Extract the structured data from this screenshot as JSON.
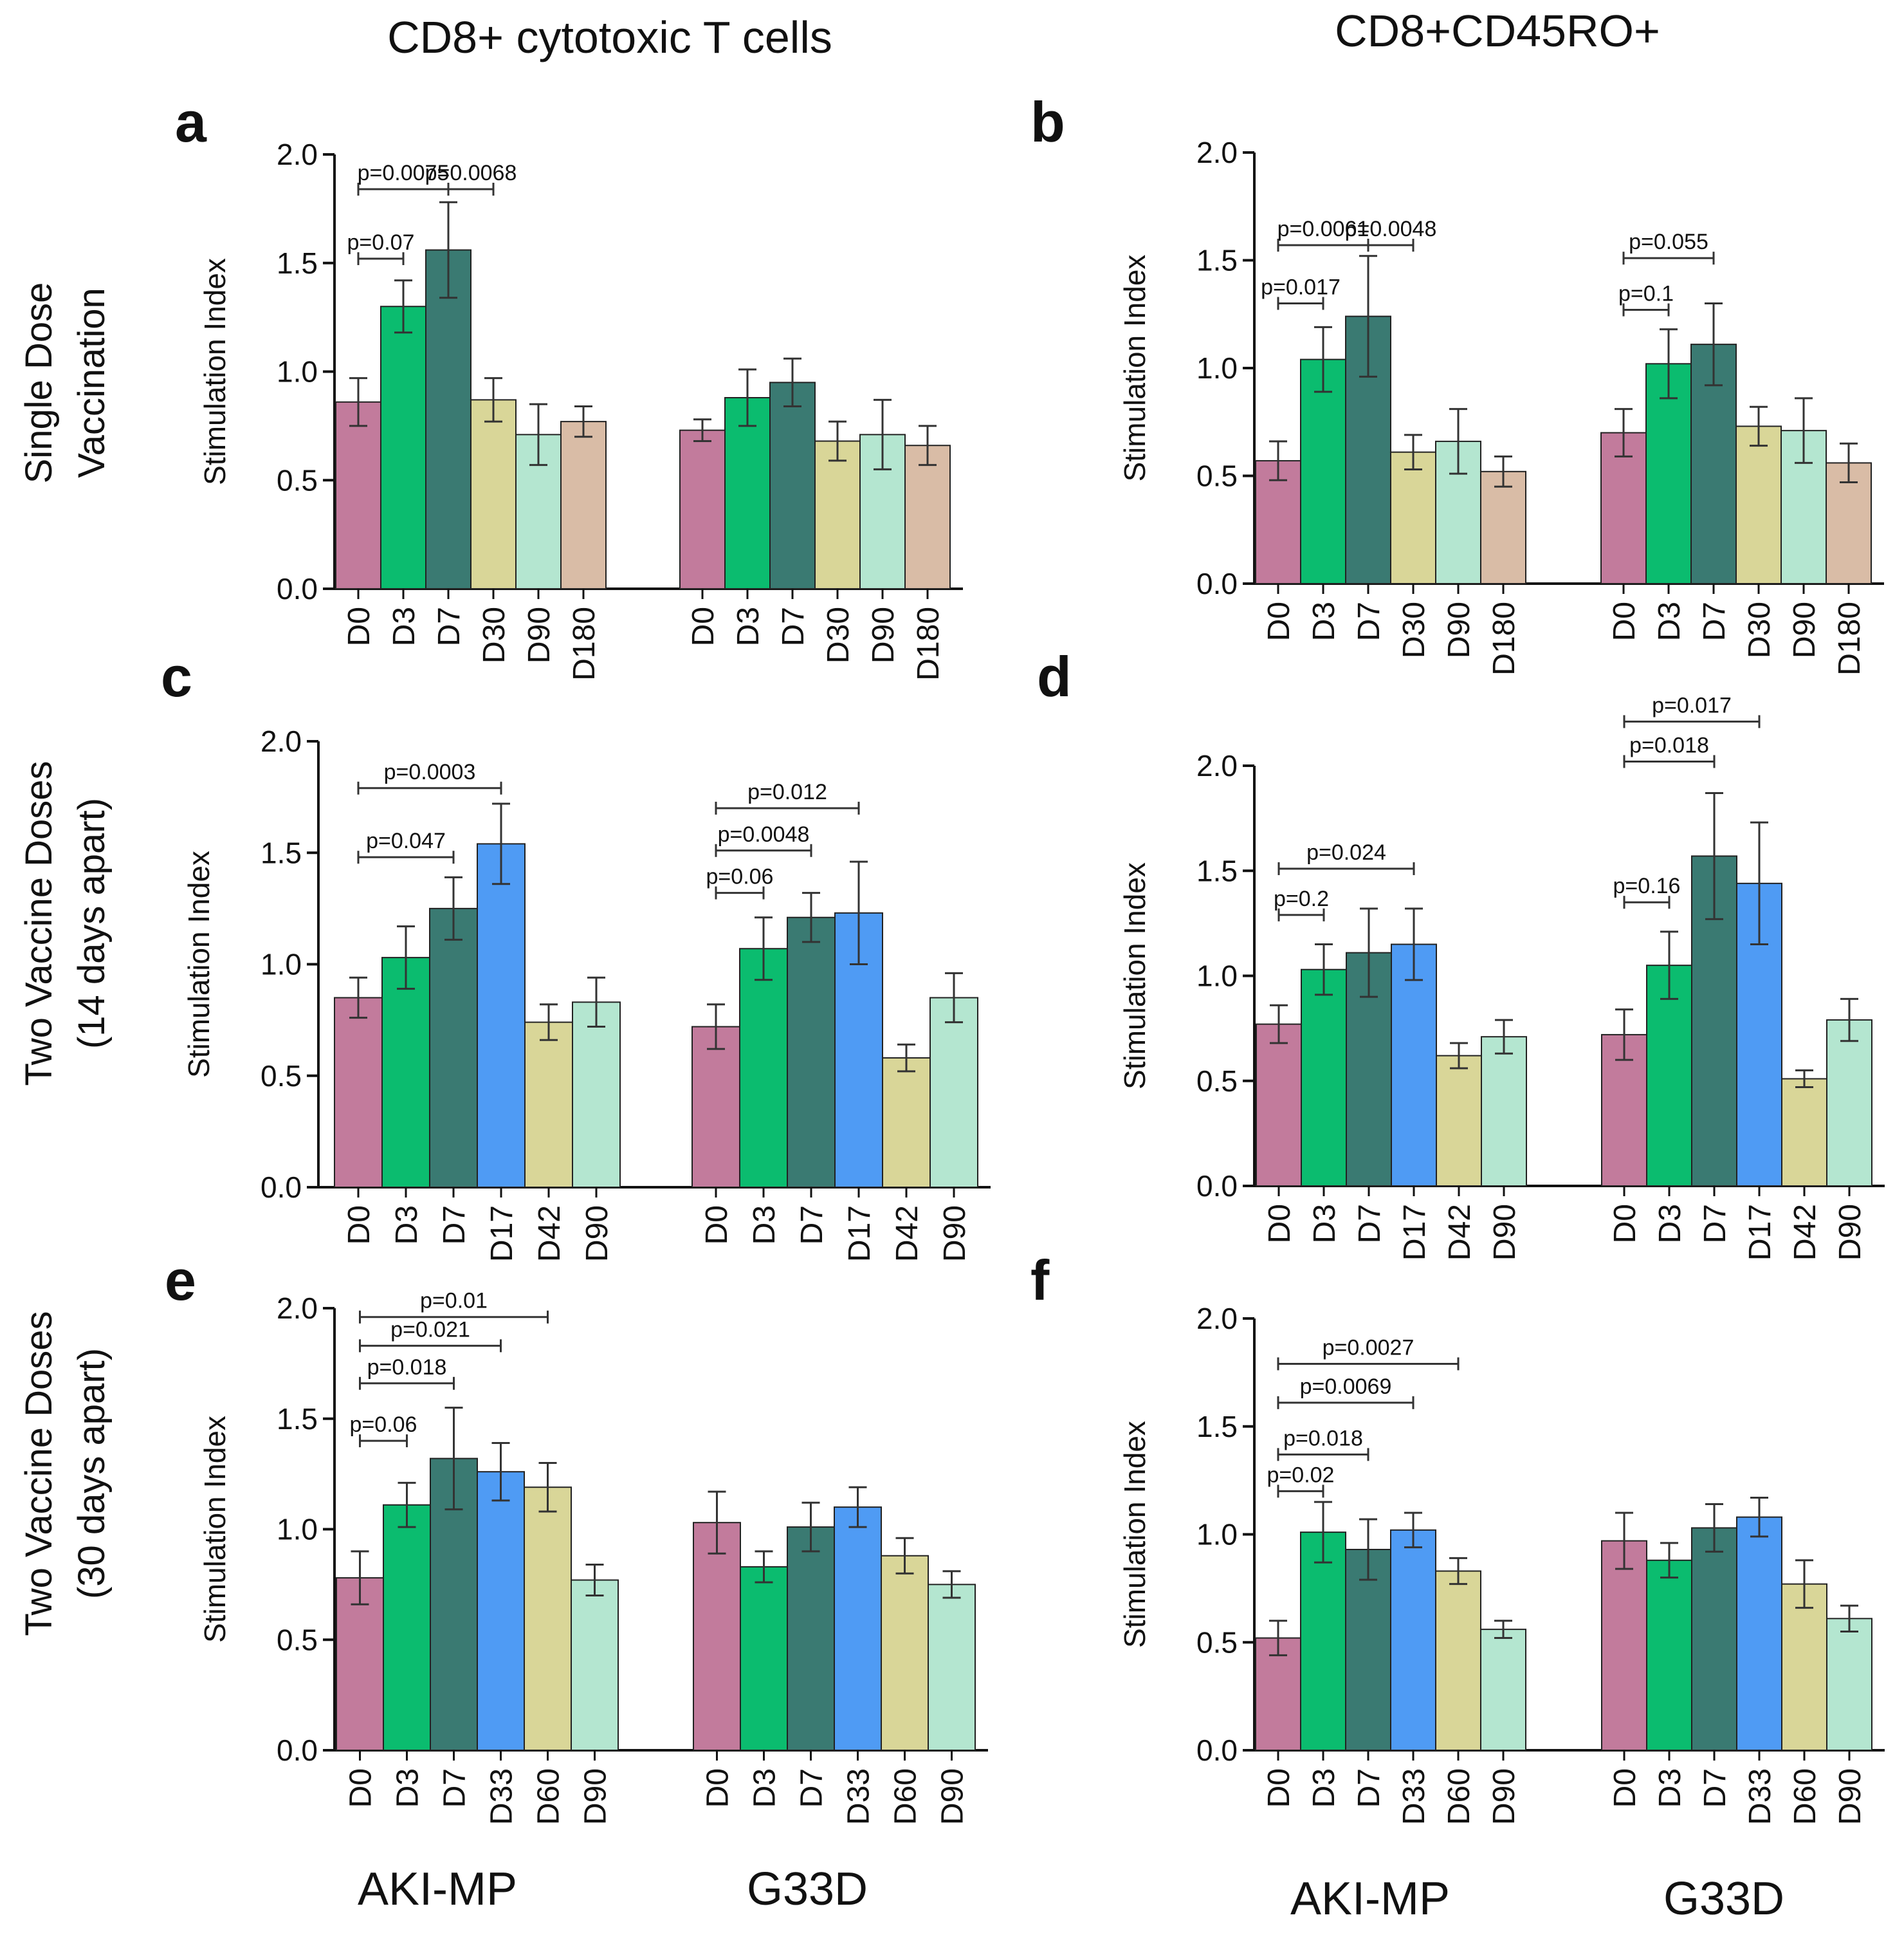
{
  "column_titles": [
    "CD8+ cytotoxic T cells",
    "CD8+CD45RO+"
  ],
  "row_titles": [
    {
      "line1": "Single Dose",
      "line2": "Vaccination"
    },
    {
      "line1": "Two Vaccine Doses",
      "line2": "(14 days apart)"
    },
    {
      "line1": "Two Vaccine Doses",
      "line2": "(30 days apart)"
    }
  ],
  "footer_groups": [
    "AKI-MP",
    "G33D"
  ],
  "colors": {
    "D0": "#c27b9c",
    "D3": "#0bbc6f",
    "D7": "#3a7a72",
    "late_blue": "#4f9bf4",
    "mid_khaki": "#d9d698",
    "late_mint": "#b4e6d0",
    "D180": "#d9bca6",
    "axis": "#111111",
    "error": "#333333"
  },
  "chart_data": [
    {
      "panel": "a",
      "type": "bar",
      "ylabel": "Stimulation Index",
      "ylim": [
        0,
        2.0
      ],
      "yticks": [
        "0.0",
        "0.5",
        "1.0",
        "1.5",
        "2.0"
      ],
      "groups": [
        "AKI-MP",
        "G33D"
      ],
      "categories": [
        "D0",
        "D3",
        "D7",
        "D30",
        "D90",
        "D180"
      ],
      "fills": [
        "D0",
        "D3",
        "D7",
        "mid_khaki",
        "late_mint",
        "D180"
      ],
      "series": [
        {
          "name": "AKI-MP",
          "values": [
            0.86,
            1.3,
            1.56,
            0.87,
            0.71,
            0.77
          ],
          "errors": [
            0.11,
            0.12,
            0.22,
            0.1,
            0.14,
            0.07
          ]
        },
        {
          "name": "G33D",
          "values": [
            0.73,
            0.88,
            0.95,
            0.68,
            0.71,
            0.66
          ],
          "errors": [
            0.05,
            0.13,
            0.11,
            0.09,
            0.16,
            0.09
          ]
        }
      ],
      "annotations": [
        {
          "group": 0,
          "from": 0,
          "to": 2,
          "y": 1.84,
          "label": "p=0.0075"
        },
        {
          "group": 0,
          "from": 2,
          "to": 3,
          "y": 1.84,
          "label": "p=0.0068"
        },
        {
          "group": 0,
          "from": 0,
          "to": 1,
          "y": 1.52,
          "label": "p=0.07"
        }
      ]
    },
    {
      "panel": "b",
      "type": "bar",
      "ylabel": "Stimulation Index",
      "ylim": [
        0,
        2.0
      ],
      "yticks": [
        "0.0",
        "0.5",
        "1.0",
        "1.5",
        "2.0"
      ],
      "groups": [
        "AKI-MP",
        "G33D"
      ],
      "categories": [
        "D0",
        "D3",
        "D7",
        "D30",
        "D90",
        "D180"
      ],
      "fills": [
        "D0",
        "D3",
        "D7",
        "mid_khaki",
        "late_mint",
        "D180"
      ],
      "series": [
        {
          "name": "AKI-MP",
          "values": [
            0.57,
            1.04,
            1.24,
            0.61,
            0.66,
            0.52
          ],
          "errors": [
            0.09,
            0.15,
            0.28,
            0.08,
            0.15,
            0.07
          ]
        },
        {
          "name": "G33D",
          "values": [
            0.7,
            1.02,
            1.11,
            0.73,
            0.71,
            0.56
          ],
          "errors": [
            0.11,
            0.16,
            0.19,
            0.09,
            0.15,
            0.09
          ]
        }
      ],
      "annotations": [
        {
          "group": 0,
          "from": 0,
          "to": 2,
          "y": 1.57,
          "label": "p=0.0061"
        },
        {
          "group": 0,
          "from": 2,
          "to": 3,
          "y": 1.57,
          "label": "p=0.0048"
        },
        {
          "group": 0,
          "from": 0,
          "to": 1,
          "y": 1.3,
          "label": "p=0.017"
        },
        {
          "group": 1,
          "from": 0,
          "to": 2,
          "y": 1.51,
          "label": "p=0.055"
        },
        {
          "group": 1,
          "from": 0,
          "to": 1,
          "y": 1.27,
          "label": "p=0.1"
        }
      ]
    },
    {
      "panel": "c",
      "type": "bar",
      "ylabel": "Stimulation Index",
      "ylim": [
        0,
        2.0
      ],
      "yticks": [
        "0.0",
        "0.5",
        "1.0",
        "1.5",
        "2.0"
      ],
      "groups": [
        "AKI-MP",
        "G33D"
      ],
      "categories": [
        "D0",
        "D3",
        "D7",
        "D17",
        "D42",
        "D90"
      ],
      "fills": [
        "D0",
        "D3",
        "D7",
        "late_blue",
        "mid_khaki",
        "late_mint"
      ],
      "series": [
        {
          "name": "AKI-MP",
          "values": [
            0.85,
            1.03,
            1.25,
            1.54,
            0.74,
            0.83
          ],
          "errors": [
            0.09,
            0.14,
            0.14,
            0.18,
            0.08,
            0.11
          ]
        },
        {
          "name": "G33D",
          "values": [
            0.72,
            1.07,
            1.21,
            1.23,
            0.58,
            0.85
          ],
          "errors": [
            0.1,
            0.14,
            0.11,
            0.23,
            0.06,
            0.11
          ]
        }
      ],
      "annotations": [
        {
          "group": 0,
          "from": 0,
          "to": 3,
          "y": 1.79,
          "label": "p=0.0003"
        },
        {
          "group": 0,
          "from": 0,
          "to": 2,
          "y": 1.48,
          "label": "p=0.047"
        },
        {
          "group": 1,
          "from": 0,
          "to": 3,
          "y": 1.7,
          "label": "p=0.012"
        },
        {
          "group": 1,
          "from": 0,
          "to": 2,
          "y": 1.51,
          "label": "p=0.0048"
        },
        {
          "group": 1,
          "from": 0,
          "to": 1,
          "y": 1.32,
          "label": "p=0.06"
        }
      ]
    },
    {
      "panel": "d",
      "type": "bar",
      "ylabel": "Stimulation Index",
      "ylim": [
        0,
        2.0
      ],
      "yticks": [
        "0.0",
        "0.5",
        "1.0",
        "1.5",
        "2.0"
      ],
      "groups": [
        "AKI-MP",
        "G33D"
      ],
      "categories": [
        "D0",
        "D3",
        "D7",
        "D17",
        "D42",
        "D90"
      ],
      "fills": [
        "D0",
        "D3",
        "D7",
        "late_blue",
        "mid_khaki",
        "late_mint"
      ],
      "series": [
        {
          "name": "AKI-MP",
          "values": [
            0.77,
            1.03,
            1.11,
            1.15,
            0.62,
            0.71
          ],
          "errors": [
            0.09,
            0.12,
            0.21,
            0.17,
            0.06,
            0.08
          ]
        },
        {
          "name": "G33D",
          "values": [
            0.72,
            1.05,
            1.57,
            1.44,
            0.51,
            0.79
          ],
          "errors": [
            0.12,
            0.16,
            0.3,
            0.29,
            0.04,
            0.1
          ]
        }
      ],
      "annotations": [
        {
          "group": 0,
          "from": 0,
          "to": 3,
          "y": 1.51,
          "label": "p=0.024"
        },
        {
          "group": 0,
          "from": 0,
          "to": 1,
          "y": 1.29,
          "label": "p=0.2"
        },
        {
          "group": 1,
          "from": 0,
          "to": 3,
          "y": 2.21,
          "label": "p=0.017"
        },
        {
          "group": 1,
          "from": 0,
          "to": 2,
          "y": 2.02,
          "label": "p=0.018"
        },
        {
          "group": 1,
          "from": 0,
          "to": 1,
          "y": 1.35,
          "label": "p=0.16"
        }
      ]
    },
    {
      "panel": "e",
      "type": "bar",
      "ylabel": "Stimulation Index",
      "ylim": [
        0,
        2.0
      ],
      "yticks": [
        "0.0",
        "0.5",
        "1.0",
        "1.5",
        "2.0"
      ],
      "groups": [
        "AKI-MP",
        "G33D"
      ],
      "categories": [
        "D0",
        "D3",
        "D7",
        "D33",
        "D60",
        "D90"
      ],
      "fills": [
        "D0",
        "D3",
        "D7",
        "late_blue",
        "mid_khaki",
        "late_mint"
      ],
      "series": [
        {
          "name": "AKI-MP",
          "values": [
            0.78,
            1.11,
            1.32,
            1.26,
            1.19,
            0.77
          ],
          "errors": [
            0.12,
            0.1,
            0.23,
            0.13,
            0.11,
            0.07
          ]
        },
        {
          "name": "G33D",
          "values": [
            1.03,
            0.83,
            1.01,
            1.1,
            0.88,
            0.75
          ],
          "errors": [
            0.14,
            0.07,
            0.11,
            0.09,
            0.08,
            0.06
          ]
        }
      ],
      "annotations": [
        {
          "group": 0,
          "from": 0,
          "to": 4,
          "y": 1.96,
          "label": "p=0.01"
        },
        {
          "group": 0,
          "from": 0,
          "to": 3,
          "y": 1.83,
          "label": "p=0.021"
        },
        {
          "group": 0,
          "from": 0,
          "to": 2,
          "y": 1.66,
          "label": "p=0.018"
        },
        {
          "group": 0,
          "from": 0,
          "to": 1,
          "y": 1.4,
          "label": "p=0.06"
        }
      ]
    },
    {
      "panel": "f",
      "type": "bar",
      "ylabel": "Stimulation Index",
      "ylim": [
        0,
        2.0
      ],
      "yticks": [
        "0.0",
        "0.5",
        "1.0",
        "1.5",
        "2.0"
      ],
      "groups": [
        "AKI-MP",
        "G33D"
      ],
      "categories": [
        "D0",
        "D3",
        "D7",
        "D33",
        "D60",
        "D90"
      ],
      "fills": [
        "D0",
        "D3",
        "D7",
        "late_blue",
        "mid_khaki",
        "late_mint"
      ],
      "series": [
        {
          "name": "AKI-MP",
          "values": [
            0.52,
            1.01,
            0.93,
            1.02,
            0.83,
            0.56
          ],
          "errors": [
            0.08,
            0.14,
            0.14,
            0.08,
            0.06,
            0.04
          ]
        },
        {
          "name": "G33D",
          "values": [
            0.97,
            0.88,
            1.03,
            1.08,
            0.77,
            0.61
          ],
          "errors": [
            0.13,
            0.08,
            0.11,
            0.09,
            0.11,
            0.06
          ]
        }
      ],
      "annotations": [
        {
          "group": 0,
          "from": 0,
          "to": 4,
          "y": 1.79,
          "label": "p=0.0027"
        },
        {
          "group": 0,
          "from": 0,
          "to": 3,
          "y": 1.61,
          "label": "p=0.0069"
        },
        {
          "group": 0,
          "from": 0,
          "to": 2,
          "y": 1.37,
          "label": "p=0.018"
        },
        {
          "group": 0,
          "from": 0,
          "to": 1,
          "y": 1.2,
          "label": "p=0.02"
        }
      ]
    }
  ]
}
